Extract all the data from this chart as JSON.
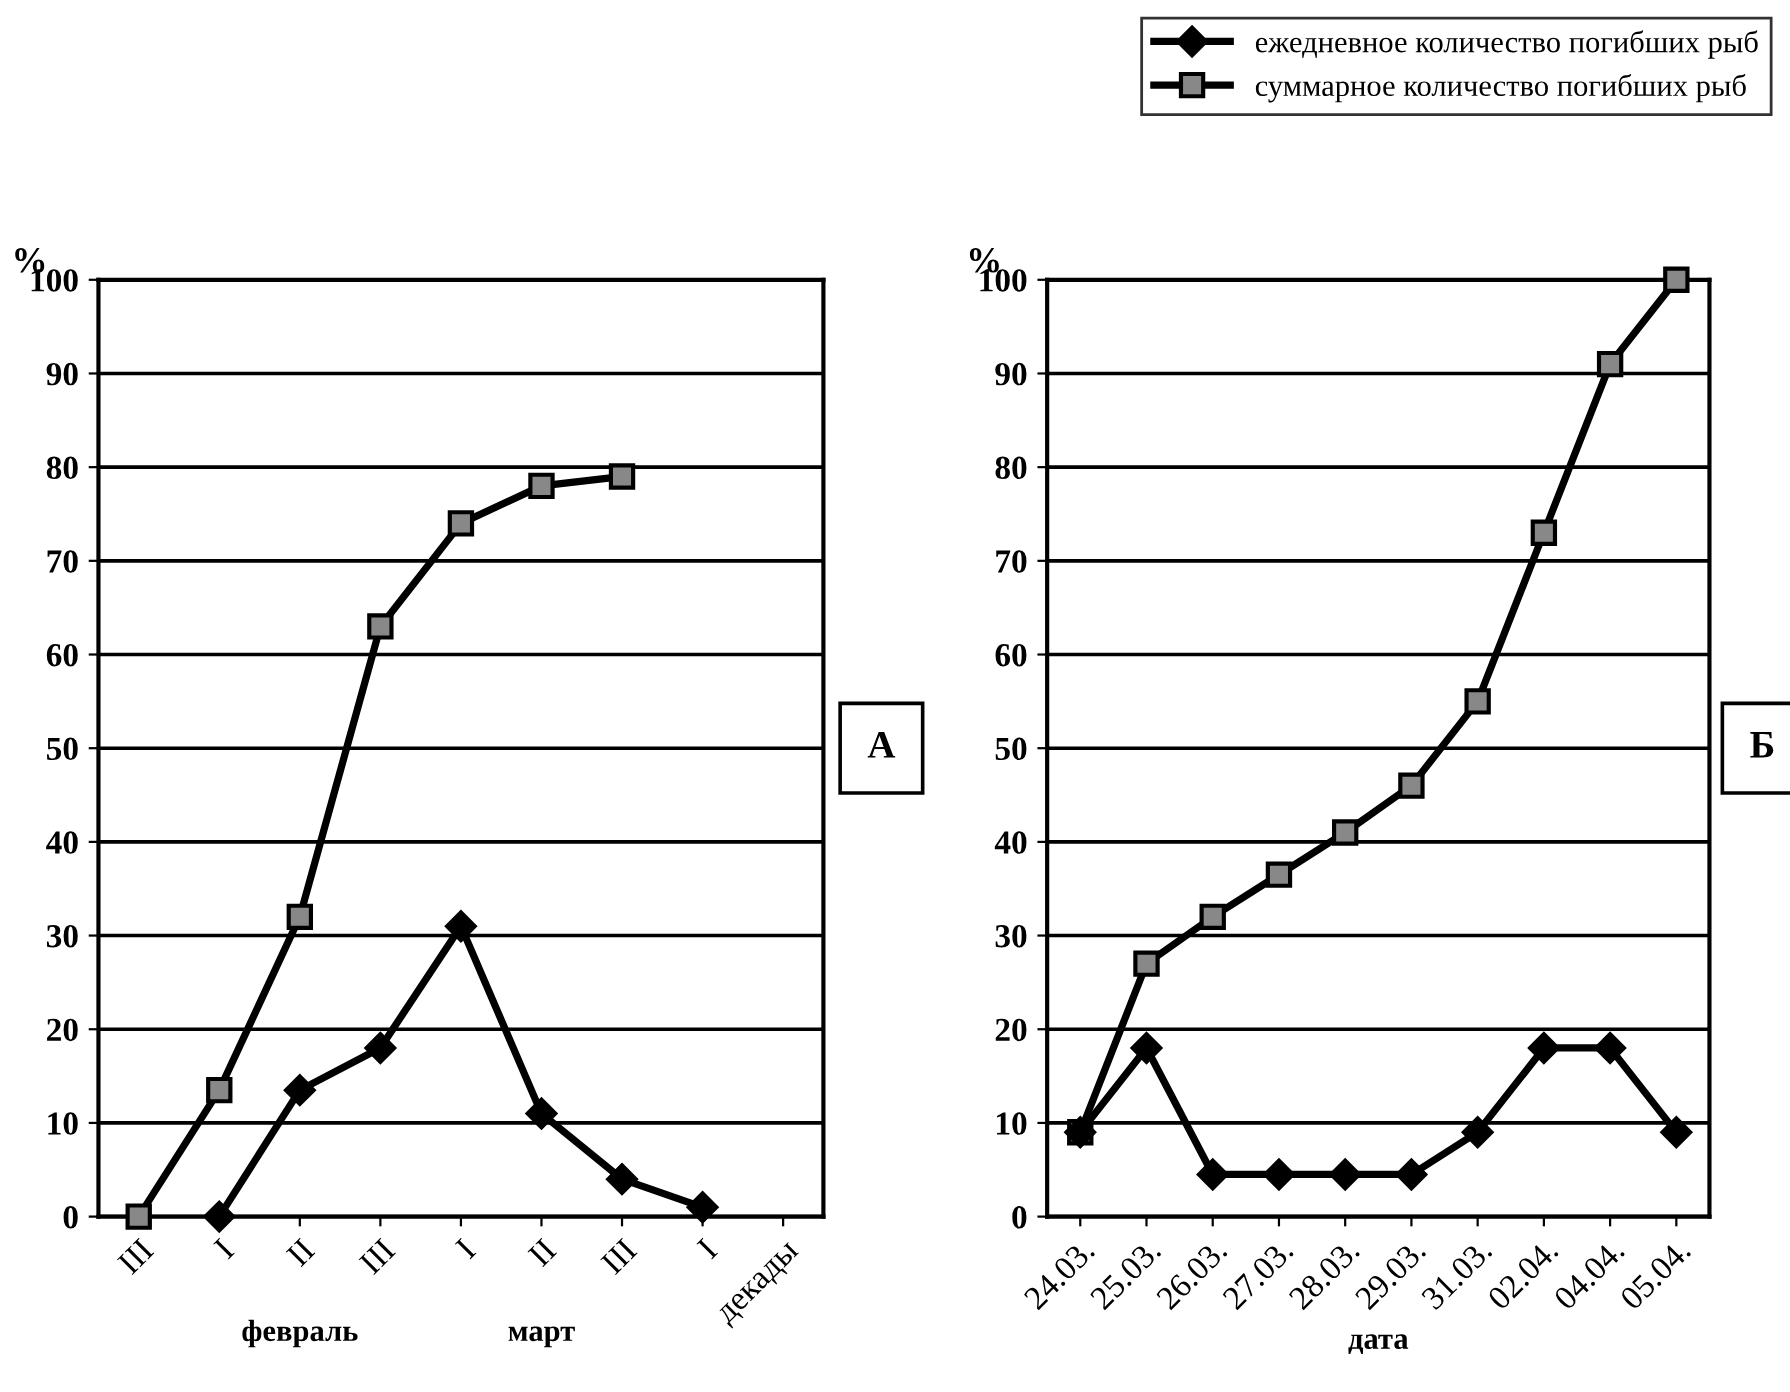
{
  "chart_data": [
    {
      "type": "line",
      "ylabel": "%",
      "categories": [
        "III",
        "I",
        "II",
        "III",
        "I",
        "II",
        "III",
        "I",
        "декады"
      ],
      "series": [
        {
          "color": "#000000",
          "marker": "diamond",
          "values": [
            null,
            0,
            13.5,
            18,
            31,
            11,
            4,
            1,
            null
          ]
        },
        {
          "color": "#000000",
          "marker": "square",
          "values": [
            0,
            13.5,
            32,
            63,
            74,
            78,
            79,
            null,
            null
          ]
        }
      ],
      "ylim": [
        0,
        100
      ],
      "yticks": [
        0,
        10,
        20,
        30,
        40,
        50,
        60,
        70,
        80,
        90,
        100
      ],
      "grid": "y",
      "annotations": [
        "А",
        "февраль",
        "март"
      ]
    },
    {
      "type": "line",
      "ylabel": "%",
      "xlabel": "дата",
      "categories": [
        "24.03.",
        "25.03.",
        "26.03.",
        "27.03.",
        "28.03.",
        "29.03.",
        "31.03.",
        "02.04.",
        "04.04.",
        "05.04."
      ],
      "series": [
        {
          "name": "ежедневное количество погибших рыб",
          "color": "#000000",
          "marker": "diamond",
          "values": [
            9,
            18,
            4.5,
            4.5,
            4.5,
            4.5,
            9,
            18,
            18,
            9
          ]
        },
        {
          "name": "суммарное количество погибших рыб",
          "color": "#000000",
          "marker": "square",
          "values": [
            9,
            27,
            32,
            36.5,
            41,
            46,
            55,
            73,
            91,
            100
          ]
        }
      ],
      "ylim": [
        0,
        100
      ],
      "yticks": [
        0,
        10,
        20,
        30,
        40,
        50,
        60,
        70,
        80,
        90,
        100
      ],
      "grid": "y",
      "legend": "top right",
      "annotations": [
        "Б"
      ]
    }
  ]
}
